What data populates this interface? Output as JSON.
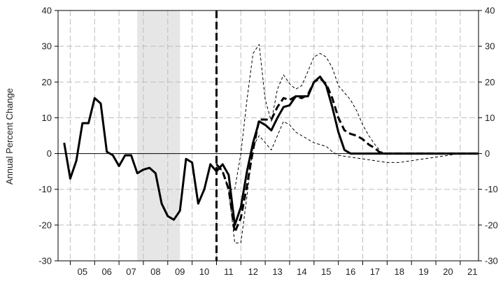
{
  "chart_data": {
    "type": "line",
    "title": "",
    "xlabel": "",
    "ylabel": "Annual Percent Change",
    "ylim": [
      -30,
      40
    ],
    "yticks": [
      -30,
      -20,
      -10,
      0,
      10,
      20,
      30,
      40
    ],
    "xlim": [
      2004.5,
      2021.75
    ],
    "x_tick_labels": [
      "05",
      "06",
      "07",
      "08",
      "09",
      "10",
      "11",
      "12",
      "13",
      "14",
      "15",
      "16",
      "17",
      "18",
      "19",
      "20",
      "21"
    ],
    "grid": true,
    "recession_shading": [
      2007.75,
      2009.5
    ],
    "forecast_start": 2011.0,
    "series": [
      {
        "style": "solid-thick",
        "x": [
          2004.75,
          2005.0,
          2005.25,
          2005.5,
          2005.75,
          2006.0,
          2006.25,
          2006.5,
          2006.75,
          2007.0,
          2007.25,
          2007.5,
          2007.75,
          2008.0,
          2008.25,
          2008.5,
          2008.75,
          2009.0,
          2009.25,
          2009.5,
          2009.75,
          2010.0,
          2010.25,
          2010.5,
          2010.75,
          2011.0,
          2011.25,
          2011.5,
          2011.75,
          2012.0,
          2012.25,
          2012.5,
          2012.75,
          2013.0,
          2013.25,
          2013.5,
          2013.75,
          2014.0,
          2014.25,
          2014.5,
          2014.75,
          2015.0,
          2015.25,
          2015.5,
          2015.75,
          2016.0,
          2016.25,
          2016.5,
          2016.75,
          2017.0,
          2017.5,
          2018.0,
          2018.5,
          2019.0,
          2019.5,
          2020.0,
          2020.5,
          2021.0,
          2021.75
        ],
        "values": [
          3,
          -7,
          -2,
          8.5,
          8.5,
          15.5,
          14,
          0.5,
          -0.5,
          -3.5,
          -0.5,
          -0.5,
          -5.5,
          -4.5,
          -4,
          -5.5,
          -14,
          -17.5,
          -18.5,
          -16,
          -1.5,
          -2.5,
          -14,
          -10,
          -3,
          -5,
          -3,
          -6,
          -20,
          -15,
          -5,
          3,
          9,
          8,
          6.5,
          10,
          13,
          13.5,
          16,
          16,
          16,
          20,
          21.5,
          19,
          13,
          6,
          1,
          0,
          0,
          0,
          0,
          0,
          0,
          0,
          0,
          0,
          0,
          0,
          0
        ]
      },
      {
        "style": "dashed-thick",
        "x": [
          2011.0,
          2011.25,
          2011.5,
          2011.75,
          2012.0,
          2012.25,
          2012.5,
          2012.75,
          2013.0,
          2013.25,
          2013.5,
          2013.75,
          2014.0,
          2014.25,
          2014.5,
          2014.75,
          2015.0,
          2015.25,
          2015.5,
          2015.75,
          2016.0,
          2016.25,
          2016.5,
          2016.75,
          2017.0,
          2017.25,
          2017.5,
          2017.75,
          2018.0,
          2018.5,
          2019.0,
          2019.5,
          2020.0,
          2020.5,
          2021.0,
          2021.75
        ],
        "values": [
          -3,
          -5,
          -10,
          -22,
          -18,
          -9,
          1,
          9.5,
          9.5,
          9.5,
          13,
          15.5,
          15,
          16,
          15.5,
          16.5,
          20,
          21,
          19.5,
          15.5,
          10,
          6.5,
          5.5,
          5,
          4,
          2.5,
          1.5,
          0,
          0,
          0,
          0,
          0,
          0,
          0,
          0,
          0
        ]
      },
      {
        "style": "dashed-thin-upper",
        "x": [
          2011.0,
          2011.25,
          2011.5,
          2011.75,
          2012.0,
          2012.25,
          2012.5,
          2012.75,
          2013.0,
          2013.25,
          2013.5,
          2013.75,
          2014.0,
          2014.25,
          2014.5,
          2014.75,
          2015.0,
          2015.25,
          2015.5,
          2015.75,
          2016.0,
          2016.25,
          2016.5,
          2016.75,
          2017.0,
          2017.25,
          2017.5,
          2017.75,
          2018.0,
          2018.5,
          2019.0,
          2019.5,
          2020.0,
          2020.5,
          2021.0,
          2021.75
        ],
        "values": [
          -3,
          -5,
          -10,
          -10,
          0,
          15,
          28,
          30.5,
          15,
          9,
          18,
          22,
          19.5,
          18,
          19,
          23,
          27,
          28,
          27,
          24,
          19,
          17,
          15,
          12,
          8,
          5,
          2.5,
          0.5,
          0,
          0,
          0,
          0,
          0,
          0,
          0,
          0
        ]
      },
      {
        "style": "dashed-thin-lower",
        "x": [
          2011.0,
          2011.25,
          2011.5,
          2011.75,
          2012.0,
          2012.25,
          2012.5,
          2012.75,
          2013.0,
          2013.25,
          2013.5,
          2013.75,
          2014.0,
          2014.25,
          2014.5,
          2014.75,
          2015.0,
          2015.25,
          2015.5,
          2015.75,
          2016.0,
          2016.5,
          2017.0,
          2017.5,
          2018.0,
          2018.5,
          2019.0,
          2019.5,
          2020.0,
          2020.5,
          2021.0,
          2021.75
        ],
        "values": [
          -3,
          -5,
          -10,
          -25,
          -25,
          -12,
          2,
          5,
          3,
          1,
          5,
          9,
          8,
          6,
          5,
          4,
          3,
          2.5,
          2,
          0.5,
          -0.5,
          -1,
          -1.5,
          -2,
          -2.5,
          -2.5,
          -2,
          -1.5,
          -1,
          -0.5,
          0,
          0
        ]
      }
    ]
  }
}
